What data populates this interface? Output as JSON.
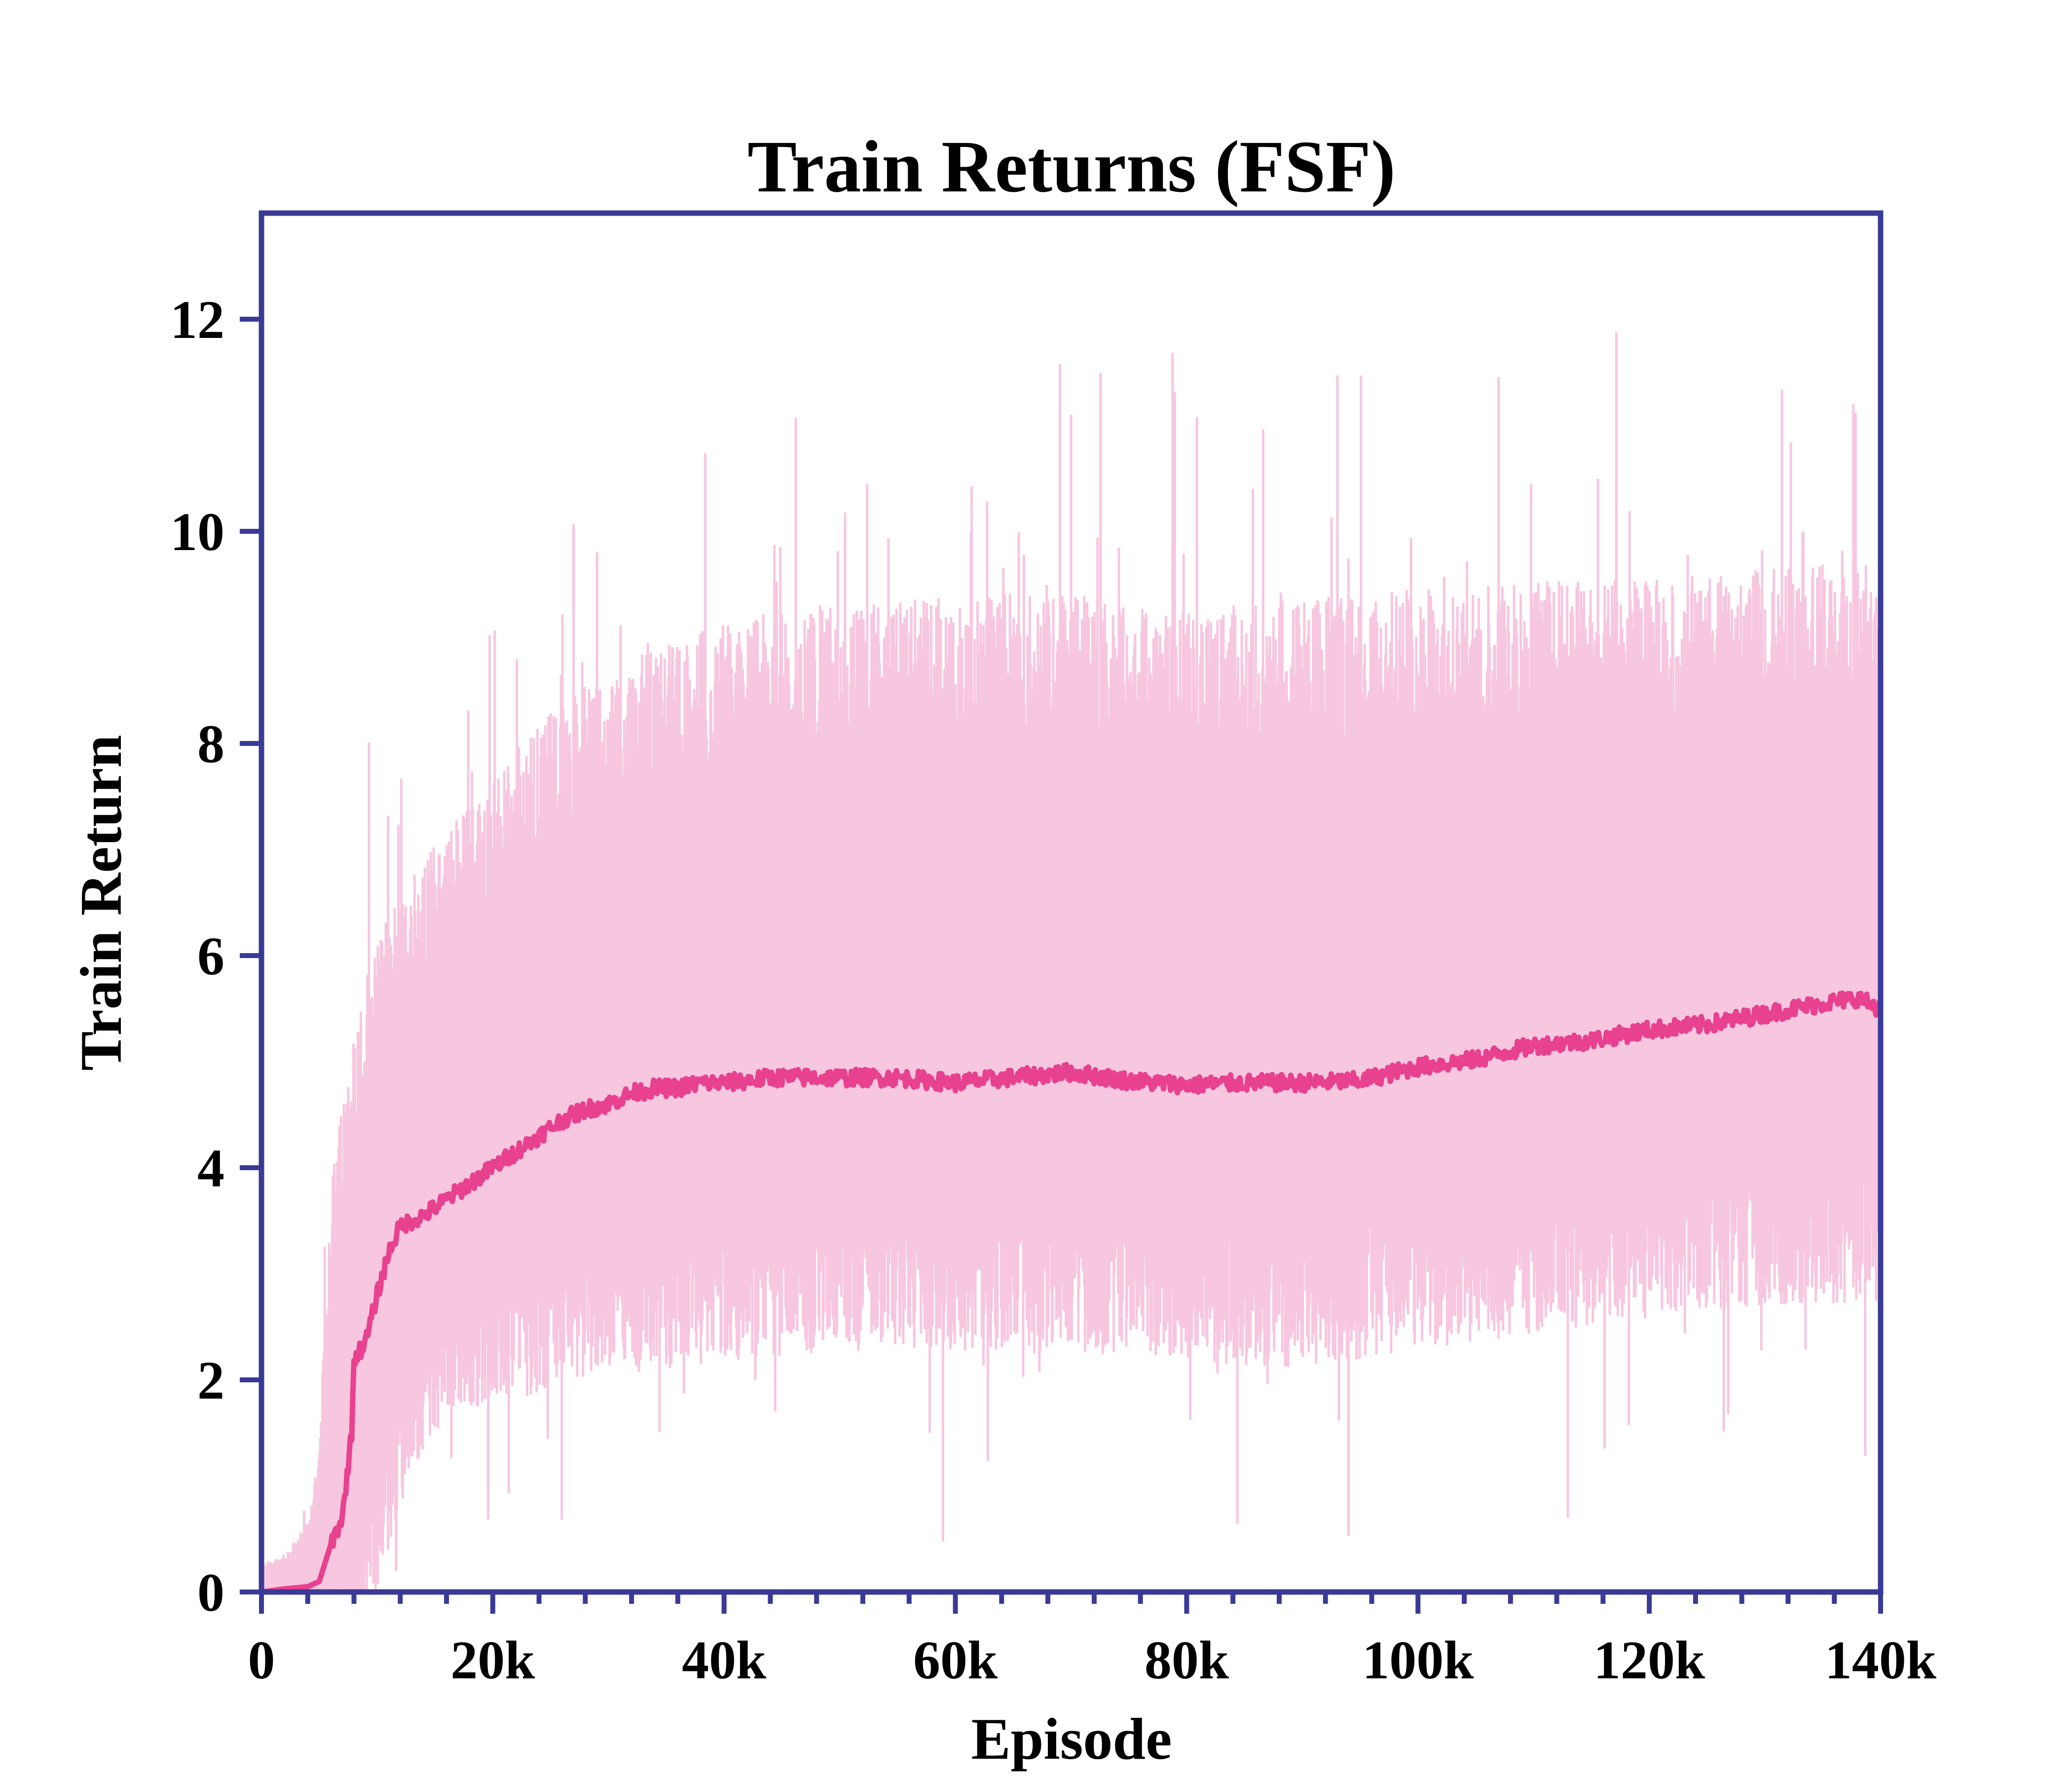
{
  "chart_data": {
    "type": "line",
    "title": "Train Returns (FSF)",
    "xlabel": "Episode",
    "ylabel": "Train Return",
    "xlim": [
      0,
      140000
    ],
    "ylim": [
      0,
      13
    ],
    "x_ticks": [
      0,
      20000,
      40000,
      60000,
      80000,
      100000,
      120000,
      140000
    ],
    "x_tick_labels": [
      "0",
      "20k",
      "40k",
      "60k",
      "80k",
      "100k",
      "120k",
      "140k"
    ],
    "x_minor_tick_step": 4000,
    "y_ticks": [
      0,
      2,
      4,
      6,
      8,
      10,
      12
    ],
    "y_tick_labels": [
      "0",
      "2",
      "4",
      "6",
      "8",
      "10",
      "12"
    ],
    "grid": false,
    "legend": "none",
    "colors": {
      "mean_line": "#e8418f",
      "band_fill": "#f7c6df",
      "frame": "#3a3a96"
    },
    "series": [
      {
        "role": "mean",
        "x": [
          0,
          2000,
          4000,
          5000,
          6000,
          7000,
          7800,
          8000,
          9000,
          10000,
          11000,
          12000,
          14000,
          16000,
          18000,
          20000,
          22000,
          24000,
          26000,
          28000,
          30000,
          32000,
          34000,
          36000,
          38000,
          40000,
          42000,
          44000,
          46000,
          48000,
          50000,
          55000,
          60000,
          65000,
          70000,
          75000,
          80000,
          85000,
          90000,
          95000,
          100000,
          105000,
          110000,
          115000,
          120000,
          125000,
          130000,
          135000,
          138000,
          140000
        ],
        "y": [
          0.0,
          0.03,
          0.05,
          0.1,
          0.45,
          0.7,
          1.5,
          2.2,
          2.35,
          2.8,
          3.2,
          3.45,
          3.55,
          3.7,
          3.85,
          4.0,
          4.15,
          4.3,
          4.45,
          4.55,
          4.6,
          4.7,
          4.75,
          4.75,
          4.8,
          4.8,
          4.82,
          4.85,
          4.85,
          4.85,
          4.85,
          4.85,
          4.8,
          4.85,
          4.9,
          4.82,
          4.78,
          4.8,
          4.8,
          4.82,
          4.95,
          5.02,
          5.15,
          5.2,
          5.3,
          5.35,
          5.45,
          5.55,
          5.6,
          5.5
        ]
      },
      {
        "role": "upper",
        "x": [
          0,
          2000,
          4000,
          5000,
          6000,
          8000,
          10000,
          12000,
          14000,
          16000,
          18000,
          20000,
          22000,
          24000,
          26000,
          28000,
          30000,
          35000,
          40000,
          45000,
          50000,
          60000,
          70000,
          80000,
          90000,
          100000,
          110000,
          120000,
          130000,
          140000
        ],
        "y": [
          0.25,
          0.3,
          0.6,
          1.2,
          3.5,
          4.8,
          5.6,
          6.1,
          6.4,
          6.7,
          6.9,
          7.1,
          7.3,
          7.6,
          7.8,
          8.0,
          8.1,
          8.3,
          8.5,
          8.6,
          8.7,
          8.75,
          8.75,
          8.6,
          8.7,
          8.8,
          8.9,
          8.9,
          9.0,
          9.1
        ]
      },
      {
        "role": "lower",
        "x": [
          0,
          2000,
          4000,
          6000,
          8000,
          9000,
          10000,
          12000,
          14000,
          16000,
          18000,
          20000,
          22000,
          24000,
          26000,
          28000,
          30000,
          35000,
          40000,
          50000,
          60000,
          70000,
          80000,
          90000,
          100000,
          110000,
          120000,
          130000,
          140000
        ],
        "y": [
          0.0,
          0.0,
          0.0,
          0.0,
          0.0,
          0.2,
          0.5,
          1.3,
          1.8,
          2.1,
          2.2,
          2.25,
          2.3,
          2.4,
          2.5,
          2.55,
          2.6,
          2.65,
          2.75,
          2.85,
          2.85,
          2.85,
          2.75,
          2.7,
          2.85,
          3.0,
          3.15,
          3.25,
          3.3
        ]
      }
    ]
  }
}
